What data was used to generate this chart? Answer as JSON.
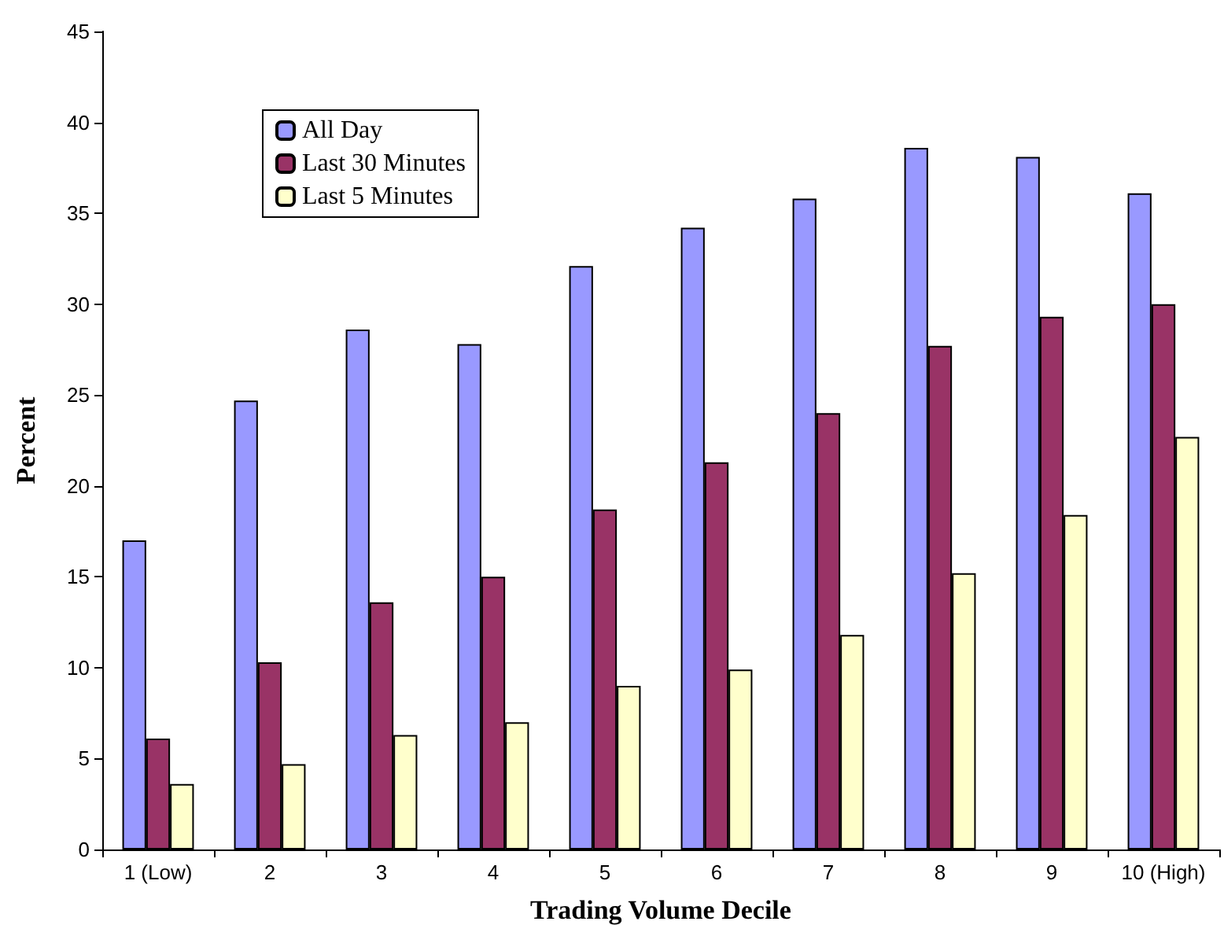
{
  "chart_data": {
    "type": "bar",
    "xlabel": "Trading Volume Decile",
    "ylabel": "Percent",
    "categories": [
      "1 (Low)",
      "2",
      "3",
      "4",
      "5",
      "6",
      "7",
      "8",
      "9",
      "10 (High)"
    ],
    "series": [
      {
        "name": "All Day",
        "color": "#9999ff",
        "values": [
          17.0,
          24.7,
          28.6,
          27.8,
          32.1,
          34.2,
          35.8,
          38.6,
          38.1,
          36.1
        ]
      },
      {
        "name": "Last 30 Minutes",
        "color": "#993366",
        "values": [
          6.1,
          10.3,
          13.6,
          15.0,
          18.7,
          21.3,
          24.0,
          27.7,
          29.3,
          30.0
        ]
      },
      {
        "name": "Last 5 Minutes",
        "color": "#ffffcc",
        "values": [
          3.6,
          4.7,
          6.3,
          7.0,
          9.0,
          9.9,
          11.8,
          15.2,
          18.4,
          22.7
        ]
      }
    ],
    "ylim": [
      0,
      45
    ],
    "yticks": [
      0,
      5,
      10,
      15,
      20,
      25,
      30,
      35,
      40,
      45
    ],
    "grid": false,
    "legend": "top left"
  }
}
